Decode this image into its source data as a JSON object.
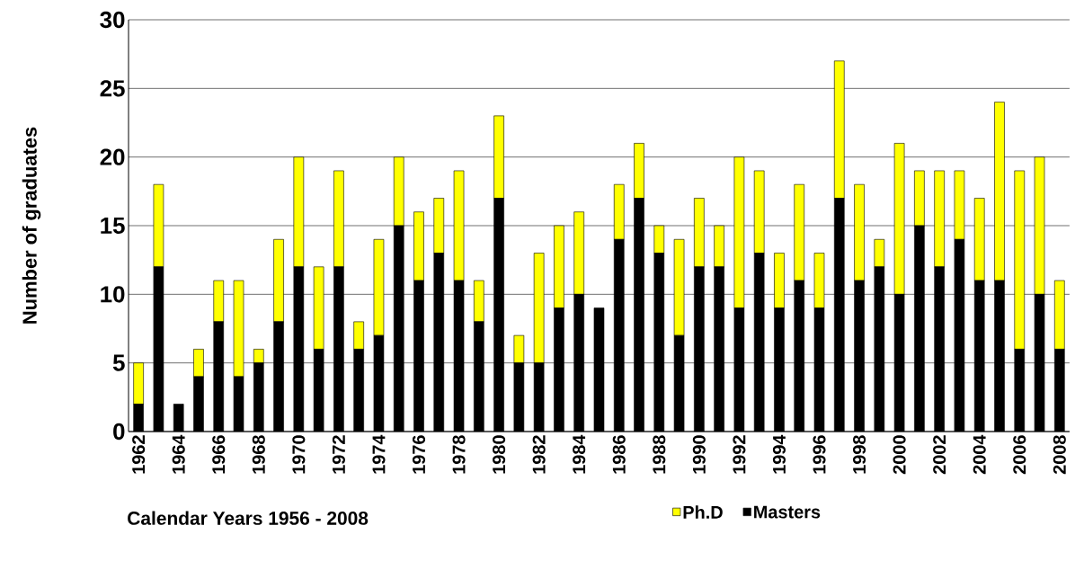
{
  "chart_data": {
    "type": "bar",
    "stacked": true,
    "xlabel": "Calendar Years 1956 - 2008",
    "ylabel": "Number of graduates",
    "categories": [
      "1962",
      null,
      "1964",
      null,
      "1966",
      null,
      "1968",
      null,
      "1970",
      null,
      "1972",
      null,
      "1974",
      null,
      "1976",
      null,
      "1978",
      null,
      "1980",
      null,
      "1982",
      null,
      "1984",
      null,
      "1986",
      null,
      "1988",
      null,
      "1990",
      null,
      "1992",
      null,
      "1994",
      null,
      "1996",
      null,
      "1998",
      null,
      "2000",
      null,
      "2002",
      null,
      "2004",
      null,
      "2006",
      null,
      "2008"
    ],
    "series": [
      {
        "name": "Masters",
        "color": "#000000",
        "values": [
          2,
          12,
          2,
          4,
          8,
          4,
          5,
          8,
          12,
          6,
          12,
          6,
          7,
          15,
          11,
          13,
          11,
          8,
          17,
          5,
          5,
          9,
          10,
          9,
          14,
          17,
          13,
          7,
          12,
          12,
          9,
          13,
          9,
          11,
          9,
          17,
          11,
          12,
          10,
          15,
          12,
          14,
          11,
          11,
          6,
          10,
          6
        ]
      },
      {
        "name": "Ph.D",
        "color": "#ffff00",
        "values": [
          3,
          6,
          0,
          2,
          3,
          7,
          1,
          6,
          8,
          6,
          7,
          2,
          7,
          5,
          5,
          4,
          8,
          3,
          6,
          2,
          8,
          6,
          6,
          0,
          4,
          4,
          2,
          7,
          5,
          3,
          11,
          6,
          4,
          7,
          4,
          10,
          7,
          2,
          11,
          4,
          7,
          5,
          6,
          13,
          13,
          10,
          5
        ]
      }
    ],
    "ylim": [
      0,
      30
    ],
    "yticks": [
      0,
      5,
      10,
      15,
      20,
      25,
      30
    ],
    "grid": "y",
    "legend": "bottom"
  }
}
